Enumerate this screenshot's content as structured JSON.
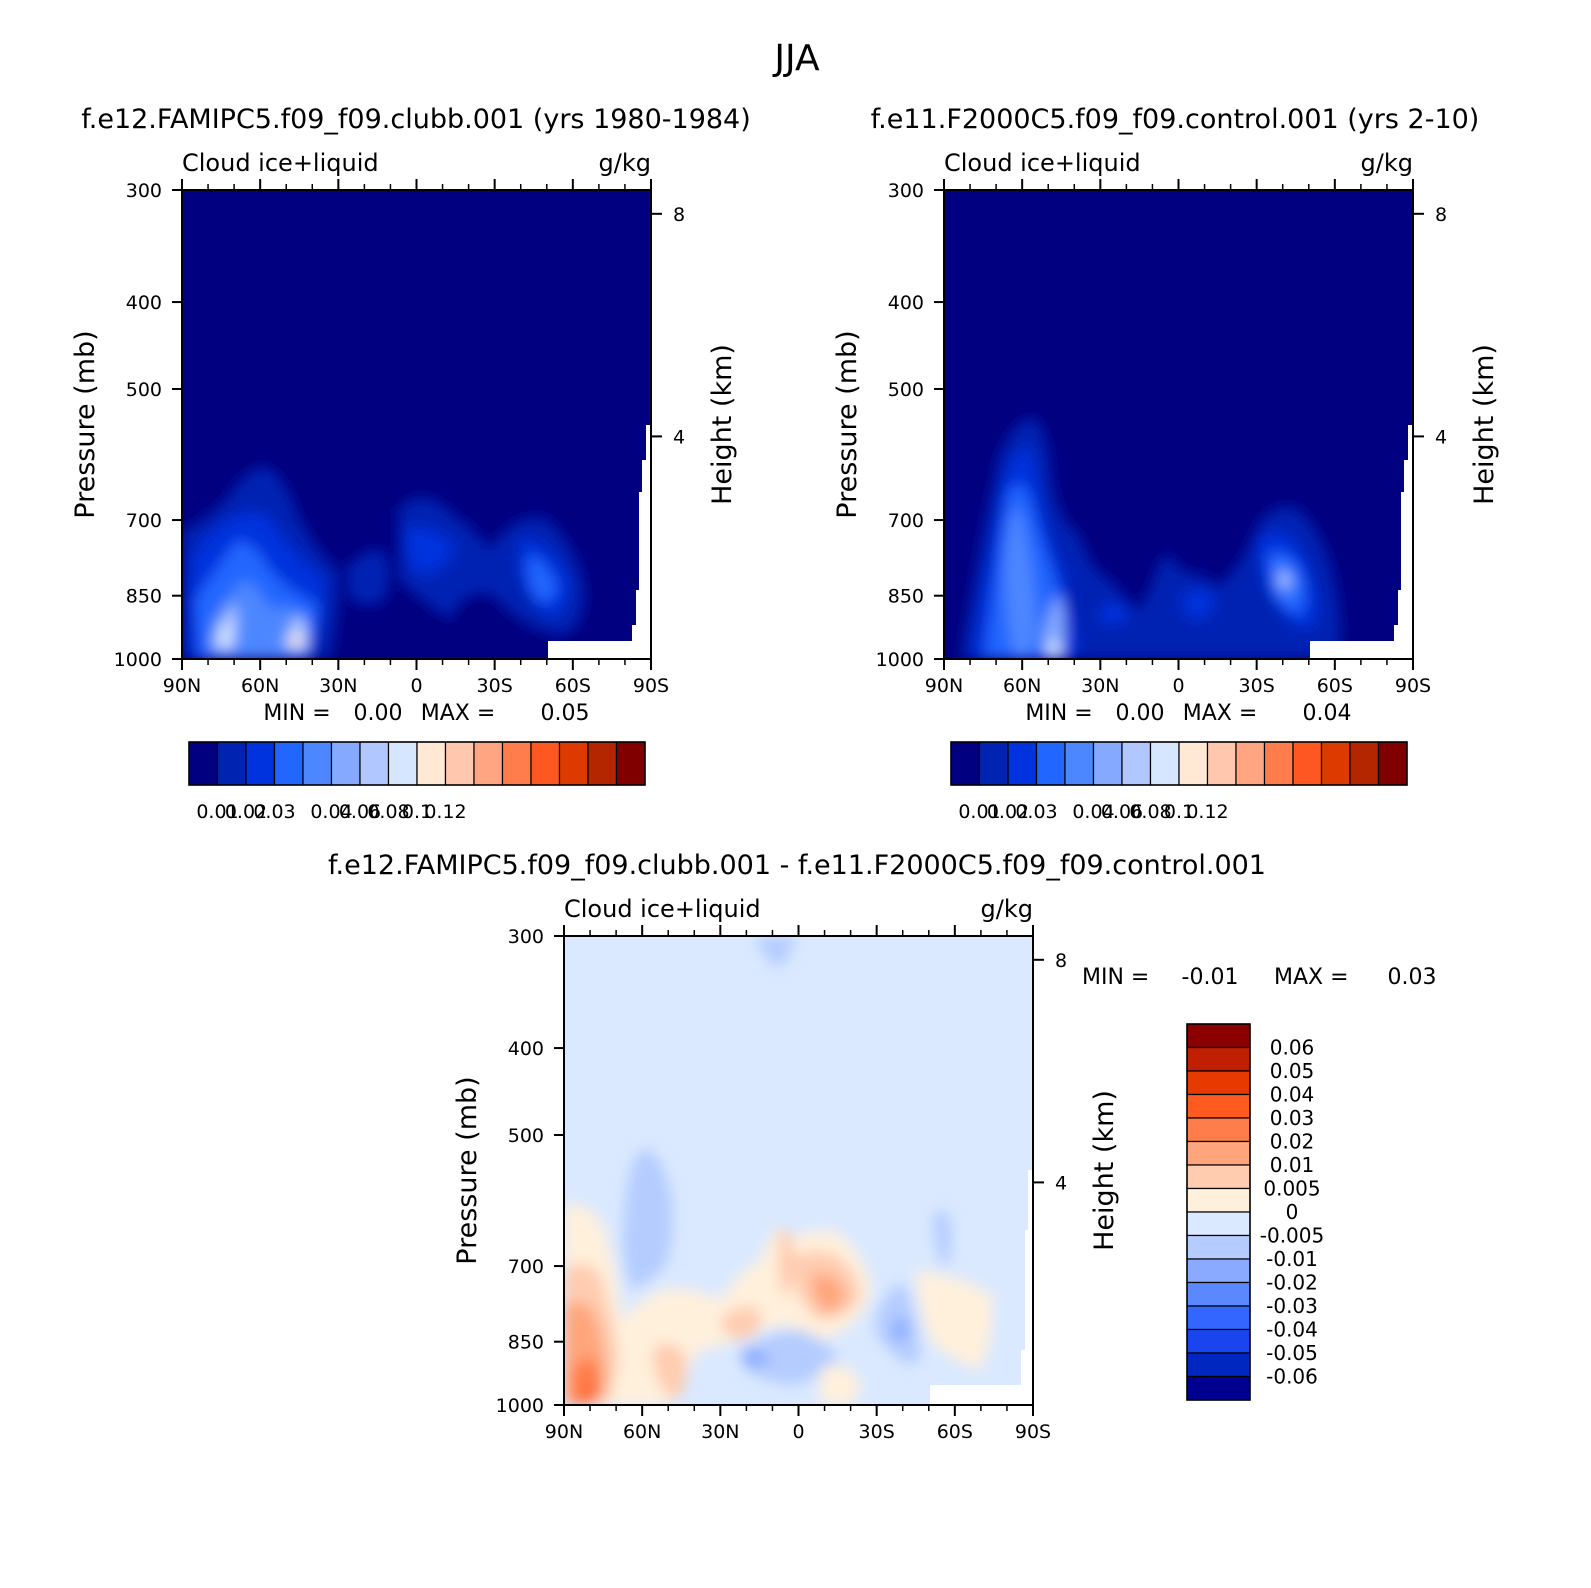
{
  "page_title": "JJA",
  "chart_data": [
    {
      "type": "heatmap",
      "id": "panel_a",
      "case_title": "f.e12.FAMIPC5.f09_f09.clubb.001 (yrs 1980-1984)",
      "variable": "Cloud ice+liquid",
      "units": "g/kg",
      "ylabel": "Pressure (mb)",
      "ylabel_right": "Height (km)",
      "yticks": [
        "300",
        "400",
        "500",
        "700",
        "850",
        "1000"
      ],
      "ytick_values": [
        300,
        400,
        500,
        700,
        850,
        1000
      ],
      "height_ticks": [
        "8",
        "4"
      ],
      "height_tick_values": [
        8,
        4
      ],
      "xticks": [
        "90N",
        "60N",
        "30N",
        "0",
        "30S",
        "60S",
        "90S"
      ],
      "xlim": [
        90,
        -90
      ],
      "ylim": [
        1000,
        300
      ],
      "min_label": "MIN =",
      "min_value": "0.00",
      "max_label": "MAX =",
      "max_value": "0.05",
      "colorbar": {
        "colors": [
          "#000080",
          "#0023b2",
          "#0033dd",
          "#2066ff",
          "#4d87ff",
          "#84a9ff",
          "#b0c8ff",
          "#d6e6ff",
          "#ffe8d4",
          "#ffc7ad",
          "#ffa582",
          "#ff7c4d",
          "#ff5721",
          "#dd3a00",
          "#b32600",
          "#800000"
        ],
        "labels": [
          "0.01",
          "0.02",
          "0.03",
          "0.04",
          "0.06",
          "0.08",
          "0.1",
          "0.12"
        ]
      }
    },
    {
      "type": "heatmap",
      "id": "panel_b",
      "case_title": "f.e11.F2000C5.f09_f09.control.001 (yrs 2-10)",
      "variable": "Cloud ice+liquid",
      "units": "g/kg",
      "ylabel": "Pressure (mb)",
      "ylabel_right": "Height (km)",
      "yticks": [
        "300",
        "400",
        "500",
        "700",
        "850",
        "1000"
      ],
      "ytick_values": [
        300,
        400,
        500,
        700,
        850,
        1000
      ],
      "height_ticks": [
        "8",
        "4"
      ],
      "height_tick_values": [
        8,
        4
      ],
      "xticks": [
        "90N",
        "60N",
        "30N",
        "0",
        "30S",
        "60S",
        "90S"
      ],
      "xlim": [
        90,
        -90
      ],
      "ylim": [
        1000,
        300
      ],
      "min_label": "MIN =",
      "min_value": "0.00",
      "max_label": "MAX =",
      "max_value": "0.04",
      "colorbar": {
        "colors": [
          "#000080",
          "#0023b2",
          "#0033dd",
          "#2066ff",
          "#4d87ff",
          "#84a9ff",
          "#b0c8ff",
          "#d6e6ff",
          "#ffe8d4",
          "#ffc7ad",
          "#ffa582",
          "#ff7c4d",
          "#ff5721",
          "#dd3a00",
          "#b32600",
          "#800000"
        ],
        "labels": [
          "0.01",
          "0.02",
          "0.03",
          "0.04",
          "0.06",
          "0.08",
          "0.1",
          "0.12"
        ]
      }
    },
    {
      "type": "heatmap",
      "id": "panel_diff",
      "case_title": "f.e12.FAMIPC5.f09_f09.clubb.001 - f.e11.F2000C5.f09_f09.control.001",
      "variable": "Cloud ice+liquid",
      "units": "g/kg",
      "ylabel": "Pressure (mb)",
      "ylabel_right": "Height (km)",
      "yticks": [
        "300",
        "400",
        "500",
        "700",
        "850",
        "1000"
      ],
      "ytick_values": [
        300,
        400,
        500,
        700,
        850,
        1000
      ],
      "height_ticks": [
        "8",
        "4"
      ],
      "height_tick_values": [
        8,
        4
      ],
      "xticks": [
        "90N",
        "60N",
        "30N",
        "0",
        "30S",
        "60S",
        "90S"
      ],
      "xlim": [
        90,
        -90
      ],
      "ylim": [
        1000,
        300
      ],
      "min_label": "MIN =",
      "min_value": "-0.01",
      "max_label": "MAX =",
      "max_value": "0.03",
      "colorbar": {
        "colors": [
          "#8b0000",
          "#c02000",
          "#e63a00",
          "#ff5a20",
          "#ff7d4a",
          "#ffa57c",
          "#ffccb0",
          "#fff0dc",
          "#dae9ff",
          "#b4ccff",
          "#8aaaff",
          "#5c88ff",
          "#3366ff",
          "#1a44ee",
          "#0028c0",
          "#000090"
        ],
        "labels": [
          "0.06",
          "0.05",
          "0.04",
          "0.03",
          "0.02",
          "0.01",
          "0.005",
          "0",
          "-0.005",
          "-0.01",
          "-0.02",
          "-0.03",
          "-0.04",
          "-0.05",
          "-0.06"
        ]
      }
    }
  ]
}
